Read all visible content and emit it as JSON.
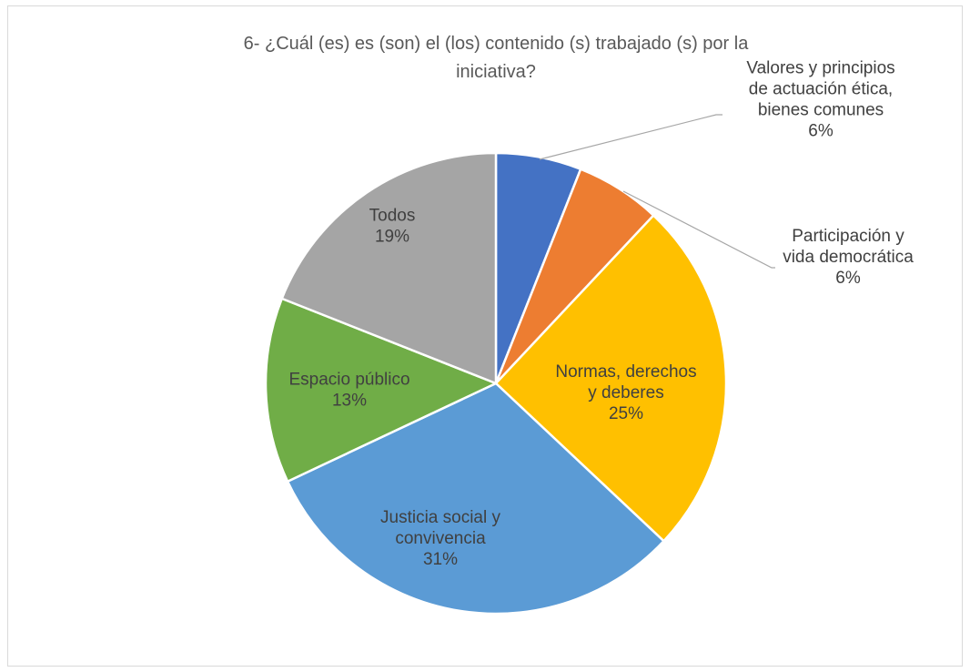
{
  "chart_data": {
    "type": "pie",
    "title_lines": [
      "6- ¿Cuál (es) es (son) el (los) contenido (s) trabajado (s) por la",
      "iniciativa?"
    ],
    "slices": [
      {
        "name": "Valores y principios de actuación ética, bienes comunes",
        "label_lines": [
          "Valores y principios",
          "de actuación ética,",
          "bienes comunes",
          "6%"
        ],
        "value": 6,
        "percent_label": "6%",
        "color": "#4472C4",
        "label_text_color": "#404040",
        "leader_line": true
      },
      {
        "name": "Participación y vida democrática",
        "label_lines": [
          "Participación y",
          "vida democrática",
          "6%"
        ],
        "value": 6,
        "percent_label": "6%",
        "color": "#ED7D31",
        "label_text_color": "#404040",
        "leader_line": true
      },
      {
        "name": "Normas, derechos y deberes",
        "label_lines": [
          "Normas, derechos",
          "y deberes",
          "25%"
        ],
        "value": 25,
        "percent_label": "25%",
        "color": "#FFC000",
        "label_text_color": "#404040",
        "leader_line": false
      },
      {
        "name": "Justicia social y convivencia",
        "label_lines": [
          "Justicia social y",
          "convivencia",
          "31%"
        ],
        "value": 31,
        "percent_label": "31%",
        "color": "#5B9BD5",
        "label_text_color": "#404040",
        "leader_line": false
      },
      {
        "name": "Espacio público",
        "label_lines": [
          "Espacio público",
          "13%"
        ],
        "value": 13,
        "percent_label": "13%",
        "color": "#70AD47",
        "label_text_color": "#404040",
        "leader_line": false
      },
      {
        "name": "Todos",
        "label_lines": [
          "Todos",
          "19%"
        ],
        "value": 19,
        "percent_label": "19%",
        "color": "#A5A5A5",
        "label_text_color": "#404040",
        "leader_line": false
      }
    ],
    "start_angle": "12 o'clock",
    "direction": "clockwise",
    "legend": "none"
  }
}
